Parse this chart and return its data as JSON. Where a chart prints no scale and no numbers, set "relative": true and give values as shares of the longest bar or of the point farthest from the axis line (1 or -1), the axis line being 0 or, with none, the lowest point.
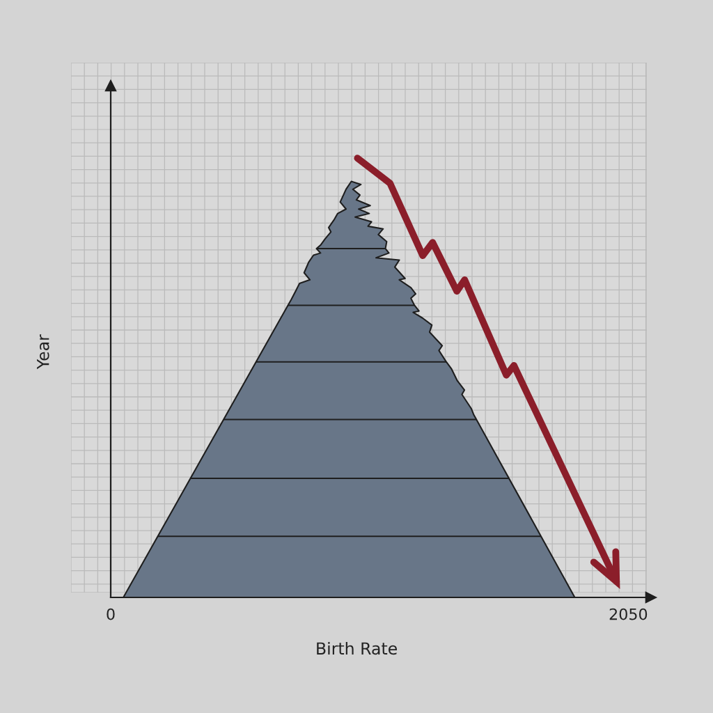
{
  "chart_data": {
    "type": "area",
    "relative": true,
    "xlabel": "Birth Rate",
    "ylabel": "Year",
    "xlim": [
      0,
      2140
    ],
    "xticks": [
      0,
      2050
    ],
    "tick_labels": "x",
    "grid": true,
    "series": [
      {
        "color": "#687688",
        "x": [
          50,
          702,
          715,
          734,
          748,
          789,
          766,
          784,
          803,
          831,
          815,
          831,
          849,
          872,
          863,
          886,
          899,
          932,
          909,
          932,
          953,
          991,
          959,
          987,
          973,
          1028,
          982,
          1024,
          968,
          1033,
          1019,
          1079,
          1060,
          1093,
          1088,
          1102,
          1051,
          1143,
          1125,
          1166,
          1143,
          1189,
          1208,
          1189,
          1203,
          1221,
          1198,
          1235,
          1272,
          1263,
          1313,
          1300,
          1327,
          1350,
          1373,
          1401,
          1391,
          1428,
          1437,
          1838
        ],
        "values": [
          0,
          0.665,
          0.678,
          0.699,
          0.715,
          0.723,
          0.739,
          0.763,
          0.779,
          0.784,
          0.794,
          0.802,
          0.816,
          0.832,
          0.842,
          0.861,
          0.874,
          0.884,
          0.9,
          0.929,
          0.947,
          0.94,
          0.929,
          0.916,
          0.905,
          0.892,
          0.884,
          0.874,
          0.866,
          0.855,
          0.845,
          0.839,
          0.826,
          0.81,
          0.794,
          0.784,
          0.773,
          0.768,
          0.752,
          0.726,
          0.723,
          0.705,
          0.691,
          0.681,
          0.665,
          0.652,
          0.649,
          0.636,
          0.62,
          0.604,
          0.573,
          0.562,
          0.538,
          0.52,
          0.493,
          0.472,
          0.462,
          0.43,
          0.417,
          0
        ]
      },
      {
        "type": "line",
        "color": "#8b1e2a",
        "line_style": "solid",
        "x": [
          977,
          1106,
          1236,
          1275,
          1371,
          1402,
          1567,
          1597,
          2003
        ],
        "values": [
          1.0,
          0.943,
          0.778,
          0.808,
          0.697,
          0.723,
          0.506,
          0.528,
          0.036
        ]
      }
    ],
    "ref_lines": [
      {
        "axis": "y",
        "value": 0.794,
        "color": "#1e1e1e"
      },
      {
        "axis": "y",
        "value": 0.665,
        "color": "#1e1e1e"
      },
      {
        "axis": "y",
        "value": 0.536,
        "color": "#1e1e1e"
      },
      {
        "axis": "y",
        "value": 0.405,
        "color": "#1e1e1e"
      },
      {
        "axis": "y",
        "value": 0.271,
        "color": "#1e1e1e"
      },
      {
        "axis": "y",
        "value": 0.139,
        "color": "#1e1e1e"
      }
    ]
  }
}
